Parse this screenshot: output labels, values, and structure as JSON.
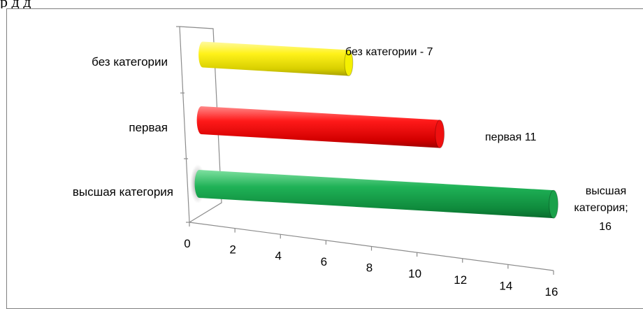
{
  "top_text": "р                                                   д                 д",
  "chart_data": {
    "type": "bar",
    "orientation": "horizontal",
    "style": "3d-cylinder",
    "categories": [
      "высшая категория",
      "первая",
      "без категории"
    ],
    "values": [
      16,
      11,
      7
    ],
    "colors": [
      "#1aa14a",
      "#f01010",
      "#f5f000"
    ],
    "data_labels": [
      [
        "высшая",
        "категория;",
        "16"
      ],
      [
        "первая  11"
      ],
      [
        "без категории - 7"
      ]
    ],
    "x_ticks": [
      "0",
      "2",
      "4",
      "6",
      "8",
      "10",
      "12",
      "14",
      "16"
    ],
    "xlim": [
      0,
      16
    ],
    "title": "",
    "xlabel": "",
    "ylabel": "",
    "grid": false,
    "legend": "none"
  }
}
